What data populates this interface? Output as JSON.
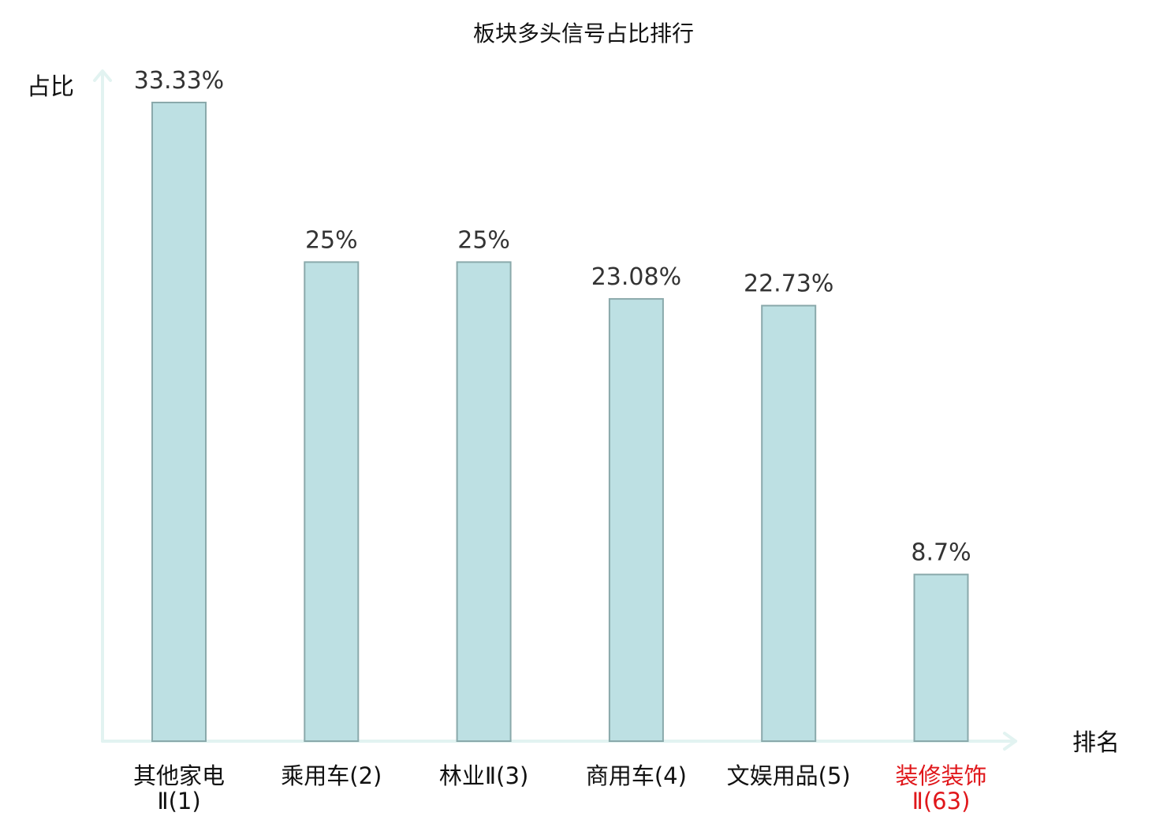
{
  "chart_data": {
    "type": "bar",
    "title": "板块多头信号占比排行",
    "ylabel": "占比",
    "xlabel": "排名",
    "ylim": [
      0,
      35
    ],
    "grid": false,
    "legend": "none",
    "categories": [
      {
        "name": "其他家电Ⅱ",
        "rank": "(1)",
        "line1": "其他家电",
        "line2": "Ⅱ(1)",
        "highlight": false
      },
      {
        "name": "乘用车",
        "rank": "(2)",
        "line1": "乘用车(2)",
        "line2": "",
        "highlight": false
      },
      {
        "name": "林业Ⅱ",
        "rank": "(3)",
        "line1": "林业Ⅱ(3)",
        "line2": "",
        "highlight": false
      },
      {
        "name": "商用车",
        "rank": "(4)",
        "line1": "商用车(4)",
        "line2": "",
        "highlight": false
      },
      {
        "name": "文娱用品",
        "rank": "(5)",
        "line1": "文娱用品(5)",
        "line2": "",
        "highlight": false
      },
      {
        "name": "装修装饰Ⅱ",
        "rank": "(63)",
        "line1": "装修装饰",
        "line2": "Ⅱ(63)",
        "highlight": true
      }
    ],
    "values": [
      33.33,
      25,
      25,
      23.08,
      22.73,
      8.7
    ],
    "value_labels": [
      "33.33%",
      "25%",
      "25%",
      "23.08%",
      "22.73%",
      "8.7%"
    ],
    "colors": {
      "bar_fill": "#bde0e3",
      "bar_stroke": "#8aa9ab",
      "axis": "#e2f3f1",
      "highlight": "#e0171b"
    }
  }
}
